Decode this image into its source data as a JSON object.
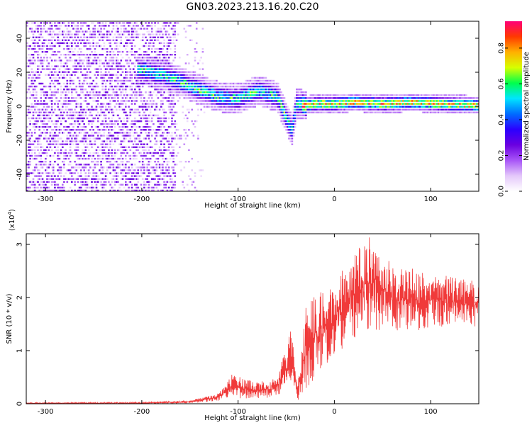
{
  "figure_title": "GN03.2023.213.16.20.C20",
  "chart_data": [
    {
      "type": "heatmap",
      "xlabel": "Height of straight line (km)",
      "ylabel": "Frequency (Hz)",
      "xlim": [
        -320,
        150
      ],
      "ylim": [
        -50,
        50
      ],
      "xticks": [
        -300,
        -200,
        -100,
        0,
        100
      ],
      "yticks": [
        -40,
        -20,
        0,
        20,
        40
      ],
      "colorbar": {
        "label": "Normalized spectral amplitude",
        "range": [
          0,
          0.95
        ],
        "ticks": [
          0.0,
          0.2,
          0.4,
          0.6,
          0.8
        ],
        "colors": [
          "#ffffff",
          "#e4c8fa",
          "#a855f7",
          "#6a00e0",
          "#2b00ff",
          "#006cff",
          "#00e5ff",
          "#00ff4c",
          "#d7ff00",
          "#ffb000",
          "#ff3a00",
          "#ff0078"
        ]
      },
      "ridge": {
        "x": [
          -200,
          -180,
          -160,
          -140,
          -120,
          -100,
          -80,
          -60,
          -50,
          -45,
          -40,
          -30,
          -20,
          0,
          20,
          50,
          80,
          110,
          150
        ],
        "y": [
          21,
          18,
          14,
          9,
          5,
          4,
          9,
          5,
          -8,
          -15,
          1,
          0,
          1,
          1,
          2,
          1,
          2,
          1,
          0
        ]
      },
      "noise_region_x": [
        -320,
        -165
      ]
    },
    {
      "type": "line",
      "xlabel": "Height of straight line (km)",
      "ylabel": "SNR (10 * v/v)",
      "yscale_label": "(x10",
      "yscale_exp": "4",
      "yscale_close": ")",
      "xlim": [
        -320,
        150
      ],
      "ylim": [
        0,
        3.2
      ],
      "xticks": [
        -300,
        -200,
        -100,
        0,
        100
      ],
      "yticks": [
        0,
        1,
        2,
        3
      ],
      "color": "#f03a3a",
      "envelope": {
        "x": [
          -320,
          -200,
          -150,
          -120,
          -105,
          -90,
          -80,
          -60,
          -45,
          -38,
          -30,
          -20,
          -10,
          0,
          20,
          40,
          60,
          80,
          100,
          120,
          150
        ],
        "low": [
          0,
          0,
          0.01,
          0.05,
          0.12,
          0.08,
          0.1,
          0.12,
          0.2,
          0.05,
          0.25,
          0.5,
          0.7,
          0.9,
          1.2,
          1.4,
          1.35,
          1.35,
          1.4,
          1.45,
          1.45
        ],
        "high": [
          0.02,
          0.03,
          0.06,
          0.2,
          0.6,
          0.45,
          0.4,
          0.5,
          1.4,
          0.35,
          1.8,
          2.05,
          2.15,
          2.35,
          2.95,
          3.2,
          2.6,
          2.55,
          2.45,
          2.4,
          2.3
        ]
      }
    }
  ]
}
